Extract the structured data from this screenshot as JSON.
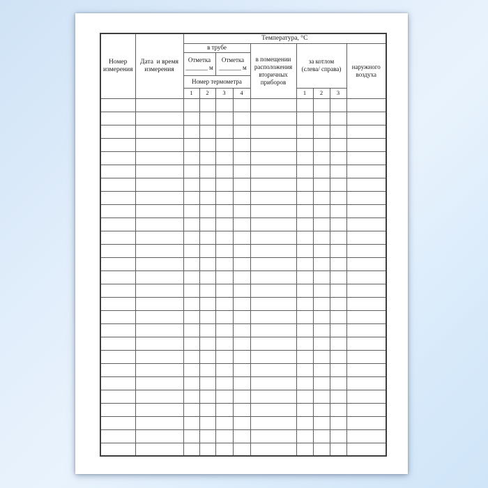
{
  "document": {
    "kind": "blank-measurement-log-form"
  },
  "header": {
    "measurement_number": "Номер\nизмерения",
    "date_time": "Дата  и время\nизмерения",
    "temperature": "Температура, °С",
    "in_pipe": "в трубе",
    "mark_1": "Отметка\n_______ м",
    "mark_2": "Отметка\n_______ м",
    "thermometer_number": "Номер термометра",
    "thermometer_cols": [
      "1",
      "2",
      "3",
      "4"
    ],
    "secondary_devices_room": "в помещении\nрасположения\nвторичных\nприборов",
    "behind_boiler": "за котлом\n(слева/ справа)",
    "boiler_cols": [
      "1",
      "2",
      "3"
    ],
    "outside_air": "наружного\nвоздуха"
  },
  "body": {
    "row_count": 27,
    "column_count": 11,
    "cell_value": ""
  },
  "colors": {
    "page": "#ffffff",
    "background_blue": "#d6e9fa",
    "border": "#5f5f5f",
    "text": "#1a1a1a"
  }
}
